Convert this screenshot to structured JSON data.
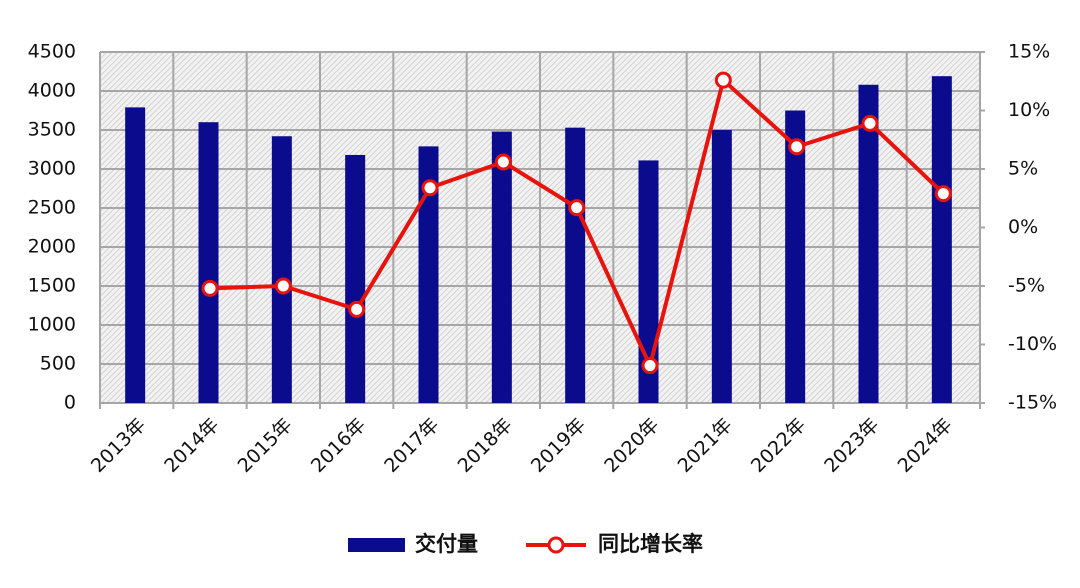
{
  "chart_data": {
    "type": "bar",
    "categories": [
      "2013年",
      "2014年",
      "2015年",
      "2016年",
      "2017年",
      "2018年",
      "2019年",
      "2020年",
      "2021年",
      "2022年",
      "2023年",
      "2024年"
    ],
    "series": [
      {
        "name": "交付量",
        "type": "bar",
        "color": "#0b0b8e",
        "values": [
          3790,
          3600,
          3420,
          3180,
          3290,
          3480,
          3530,
          3110,
          3500,
          3750,
          4080,
          4190
        ]
      },
      {
        "name": "同比增长率",
        "type": "line",
        "axis": "y2",
        "color": "#e8130c",
        "values": [
          null,
          -5.2,
          -5.0,
          -7.0,
          3.4,
          5.6,
          1.7,
          -11.8,
          12.6,
          6.9,
          8.9,
          2.9
        ]
      }
    ],
    "ylim": [
      0,
      4500
    ],
    "yticks": [
      0,
      500,
      1000,
      1500,
      2000,
      2500,
      3000,
      3500,
      4000,
      4500
    ],
    "y2lim": [
      -15,
      15
    ],
    "y2ticks": [
      {
        "value": -15,
        "label": "-15%"
      },
      {
        "value": -10,
        "label": "-10%"
      },
      {
        "value": -5,
        "label": "-5%"
      },
      {
        "value": 0,
        "label": "0%"
      },
      {
        "value": 5,
        "label": "5%"
      },
      {
        "value": 10,
        "label": "10%"
      },
      {
        "value": 15,
        "label": "15%"
      }
    ],
    "grid": true
  }
}
